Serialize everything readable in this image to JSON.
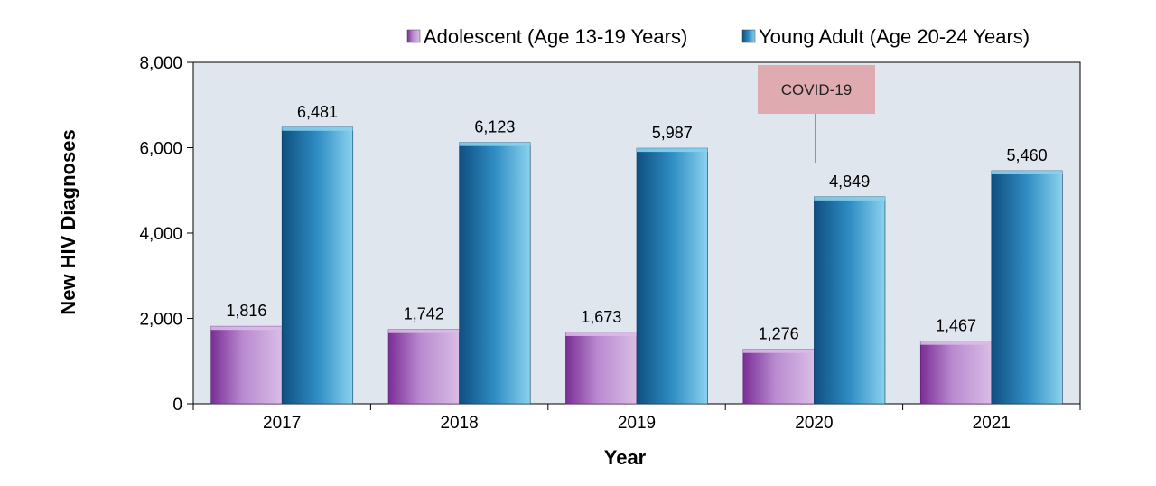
{
  "chart_data": {
    "type": "bar",
    "xlabel": "Year",
    "ylabel": "New HIV Diagnoses",
    "categories": [
      "2017",
      "2018",
      "2019",
      "2020",
      "2021"
    ],
    "ylim": [
      0,
      8000
    ],
    "yticks": [
      0,
      2000,
      4000,
      6000,
      8000
    ],
    "ytick_labels": [
      "0",
      "2,000",
      "4,000",
      "6,000",
      "8,000"
    ],
    "series": [
      {
        "name": "Adolescent (Age 13-19 Years)",
        "values": [
          1816,
          1742,
          1673,
          1276,
          1467
        ],
        "labels": [
          "1,816",
          "1,742",
          "1,673",
          "1,276",
          "1,467"
        ],
        "colors": {
          "dark": "#7a2e96",
          "mid": "#b98ad0",
          "light": "#d9bde5"
        }
      },
      {
        "name": "Young Adult (Age 20-24 Years)",
        "values": [
          6481,
          6123,
          5987,
          4849,
          5460
        ],
        "labels": [
          "6,481",
          "6,123",
          "5,987",
          "4,849",
          "5,460"
        ],
        "colors": {
          "dark": "#0f4f80",
          "mid": "#2f8dc3",
          "light": "#8ad2ee"
        }
      }
    ],
    "legend_position": "top-right",
    "plot_background": "#dfe6ee",
    "annotation": {
      "text": "COVID-19",
      "category": "2020",
      "color": "#dfaab0"
    }
  }
}
